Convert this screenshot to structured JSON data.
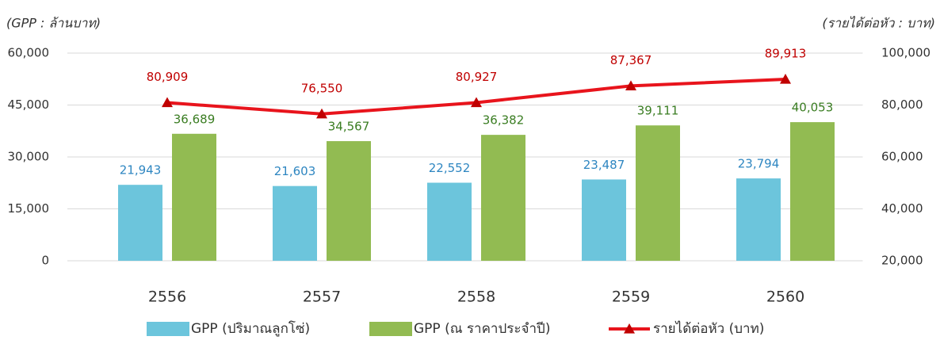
{
  "chart_data": {
    "type": "bar",
    "y_label": "(GPP : ล้านบาท)",
    "y2_label": "(รายได้ต่อหัว : บาท)",
    "categories": [
      "2556",
      "2557",
      "2558",
      "2559",
      "2560"
    ],
    "series": [
      {
        "name": "GPP (ปริมาณลูกโซ่)",
        "type": "bar",
        "color": "#6cc5dc",
        "label_color": "#2e86c1",
        "values": [
          21943,
          21603,
          22552,
          23487,
          23794
        ],
        "value_labels": [
          "21,943",
          "21,603",
          "22,552",
          "23,487",
          "23,794"
        ]
      },
      {
        "name": "GPP (ณ ราคาประจำปี)",
        "type": "bar",
        "color": "#92bb52",
        "label_color": "#3a7d22",
        "values": [
          36689,
          34567,
          36382,
          39111,
          40053
        ],
        "value_labels": [
          "36,689",
          "34,567",
          "36,382",
          "39,111",
          "40,053"
        ]
      },
      {
        "name": "รายได้ต่อหัว (บาท)",
        "type": "line",
        "axis": "y2",
        "color": "#e8141c",
        "label_color": "#c00000",
        "values": [
          80909,
          76550,
          80927,
          87367,
          89913
        ],
        "value_labels": [
          "80,909",
          "76,550",
          "80,927",
          "87,367",
          "89,913"
        ]
      }
    ],
    "ylim": [
      0,
      60000
    ],
    "yticks": [
      0,
      {
        "value": 15000,
        "label": "15,000"
      },
      {
        "value": 30000,
        "label": "30,000"
      },
      {
        "value": 45000,
        "label": "45,000"
      },
      {
        "value": 60000,
        "label": "60,000"
      }
    ],
    "y2lim": [
      20000,
      100000
    ],
    "y2ticks": [
      {
        "value": 20000,
        "label": "20,000"
      },
      {
        "value": 40000,
        "label": "40,000"
      },
      {
        "value": 60000,
        "label": "60,000"
      },
      {
        "value": 80000,
        "label": "80,000"
      },
      {
        "value": 100000,
        "label": "100,000"
      }
    ],
    "grid": true
  }
}
